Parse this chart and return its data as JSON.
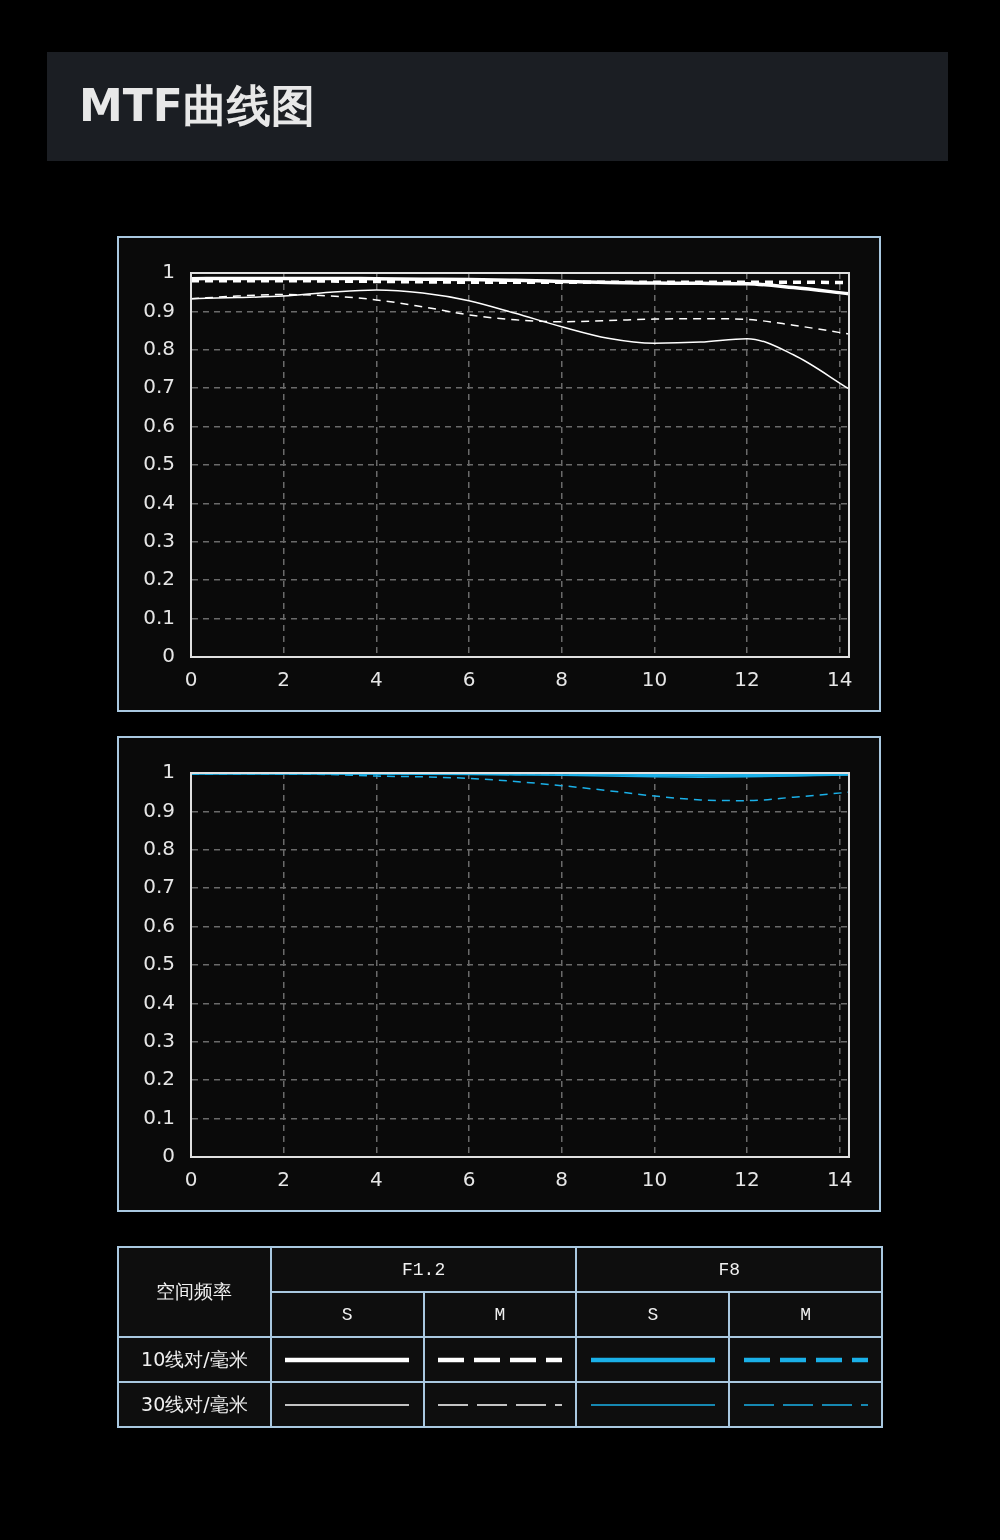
{
  "chart_data": [
    {
      "type": "line",
      "title": "MTF曲线图",
      "x": [
        0,
        1,
        2,
        3,
        4,
        5,
        6,
        7,
        8,
        9,
        10,
        11,
        12,
        13,
        14.2
      ],
      "xlim": [
        0,
        14.2
      ],
      "xticks": [
        0,
        2,
        4,
        6,
        8,
        10,
        12,
        14
      ],
      "ylim": [
        0,
        1
      ],
      "yticks": [
        0,
        0.1,
        0.2,
        0.3,
        0.4,
        0.5,
        0.6,
        0.7,
        0.8,
        0.9,
        1
      ],
      "grid": true,
      "legend": false,
      "marker": "none",
      "series": [
        {
          "color": "#ffffff",
          "line_style": "solid",
          "values": [
            0.985,
            0.986,
            0.986,
            0.986,
            0.985,
            0.984,
            0.983,
            0.981,
            0.978,
            0.975,
            0.974,
            0.973,
            0.972,
            0.962,
            0.946
          ]
        },
        {
          "color": "#ffffff",
          "line_style": "dashed",
          "values": [
            0.98,
            0.98,
            0.98,
            0.979,
            0.978,
            0.977,
            0.976,
            0.976,
            0.976,
            0.976,
            0.976,
            0.976,
            0.976,
            0.976,
            0.975
          ]
        },
        {
          "color": "#ffffff",
          "line_style": "solid",
          "values": [
            0.933,
            0.936,
            0.94,
            0.95,
            0.956,
            0.948,
            0.928,
            0.895,
            0.86,
            0.83,
            0.817,
            0.82,
            0.829,
            0.787,
            0.698
          ]
        },
        {
          "color": "#ffffff",
          "line_style": "dashed",
          "values": [
            0.933,
            0.94,
            0.944,
            0.94,
            0.93,
            0.912,
            0.891,
            0.878,
            0.873,
            0.876,
            0.88,
            0.881,
            0.879,
            0.864,
            0.841
          ]
        }
      ]
    },
    {
      "type": "line",
      "x": [
        0,
        1,
        2,
        3,
        4,
        5,
        6,
        7,
        8,
        9,
        10,
        11,
        12,
        13,
        14.2
      ],
      "xlim": [
        0,
        14.2
      ],
      "xticks": [
        0,
        2,
        4,
        6,
        8,
        10,
        12,
        14
      ],
      "ylim": [
        0,
        1
      ],
      "yticks": [
        0,
        0.1,
        0.2,
        0.3,
        0.4,
        0.5,
        0.6,
        0.7,
        0.8,
        0.9,
        1
      ],
      "grid": true,
      "legend": false,
      "marker": "none",
      "series": [
        {
          "color": "#1ab0e8",
          "line_style": "solid",
          "values": [
            1,
            1,
            1,
            1,
            1,
            1,
            1,
            1,
            1,
            0.998,
            0.996,
            0.995,
            0.995,
            0.996,
            0.998
          ]
        },
        {
          "color": "#1ab0e8",
          "line_style": "dashed",
          "values": [
            1,
            1,
            1,
            1,
            1,
            1,
            1,
            1,
            1,
            1,
            1,
            1,
            1,
            1,
            1
          ]
        },
        {
          "color": "#1ab0e8",
          "line_style": "solid",
          "values": [
            0.999,
            0.999,
            0.999,
            0.998,
            0.998,
            0.997,
            0.996,
            0.995,
            0.994,
            0.992,
            0.99,
            0.989,
            0.99,
            0.992,
            0.995
          ]
        },
        {
          "color": "#1ab0e8",
          "line_style": "dashed",
          "values": [
            1,
            1,
            0.998,
            0.996,
            0.992,
            0.99,
            0.986,
            0.978,
            0.967,
            0.954,
            0.94,
            0.93,
            0.928,
            0.937,
            0.95
          ]
        }
      ]
    },
    {
      "type": "other",
      "annotations": [
        "空间频率",
        "F1.2",
        "F8",
        "S",
        "M",
        "S",
        "M",
        "10线对/毫米",
        "30线对/毫米"
      ]
    }
  ]
}
